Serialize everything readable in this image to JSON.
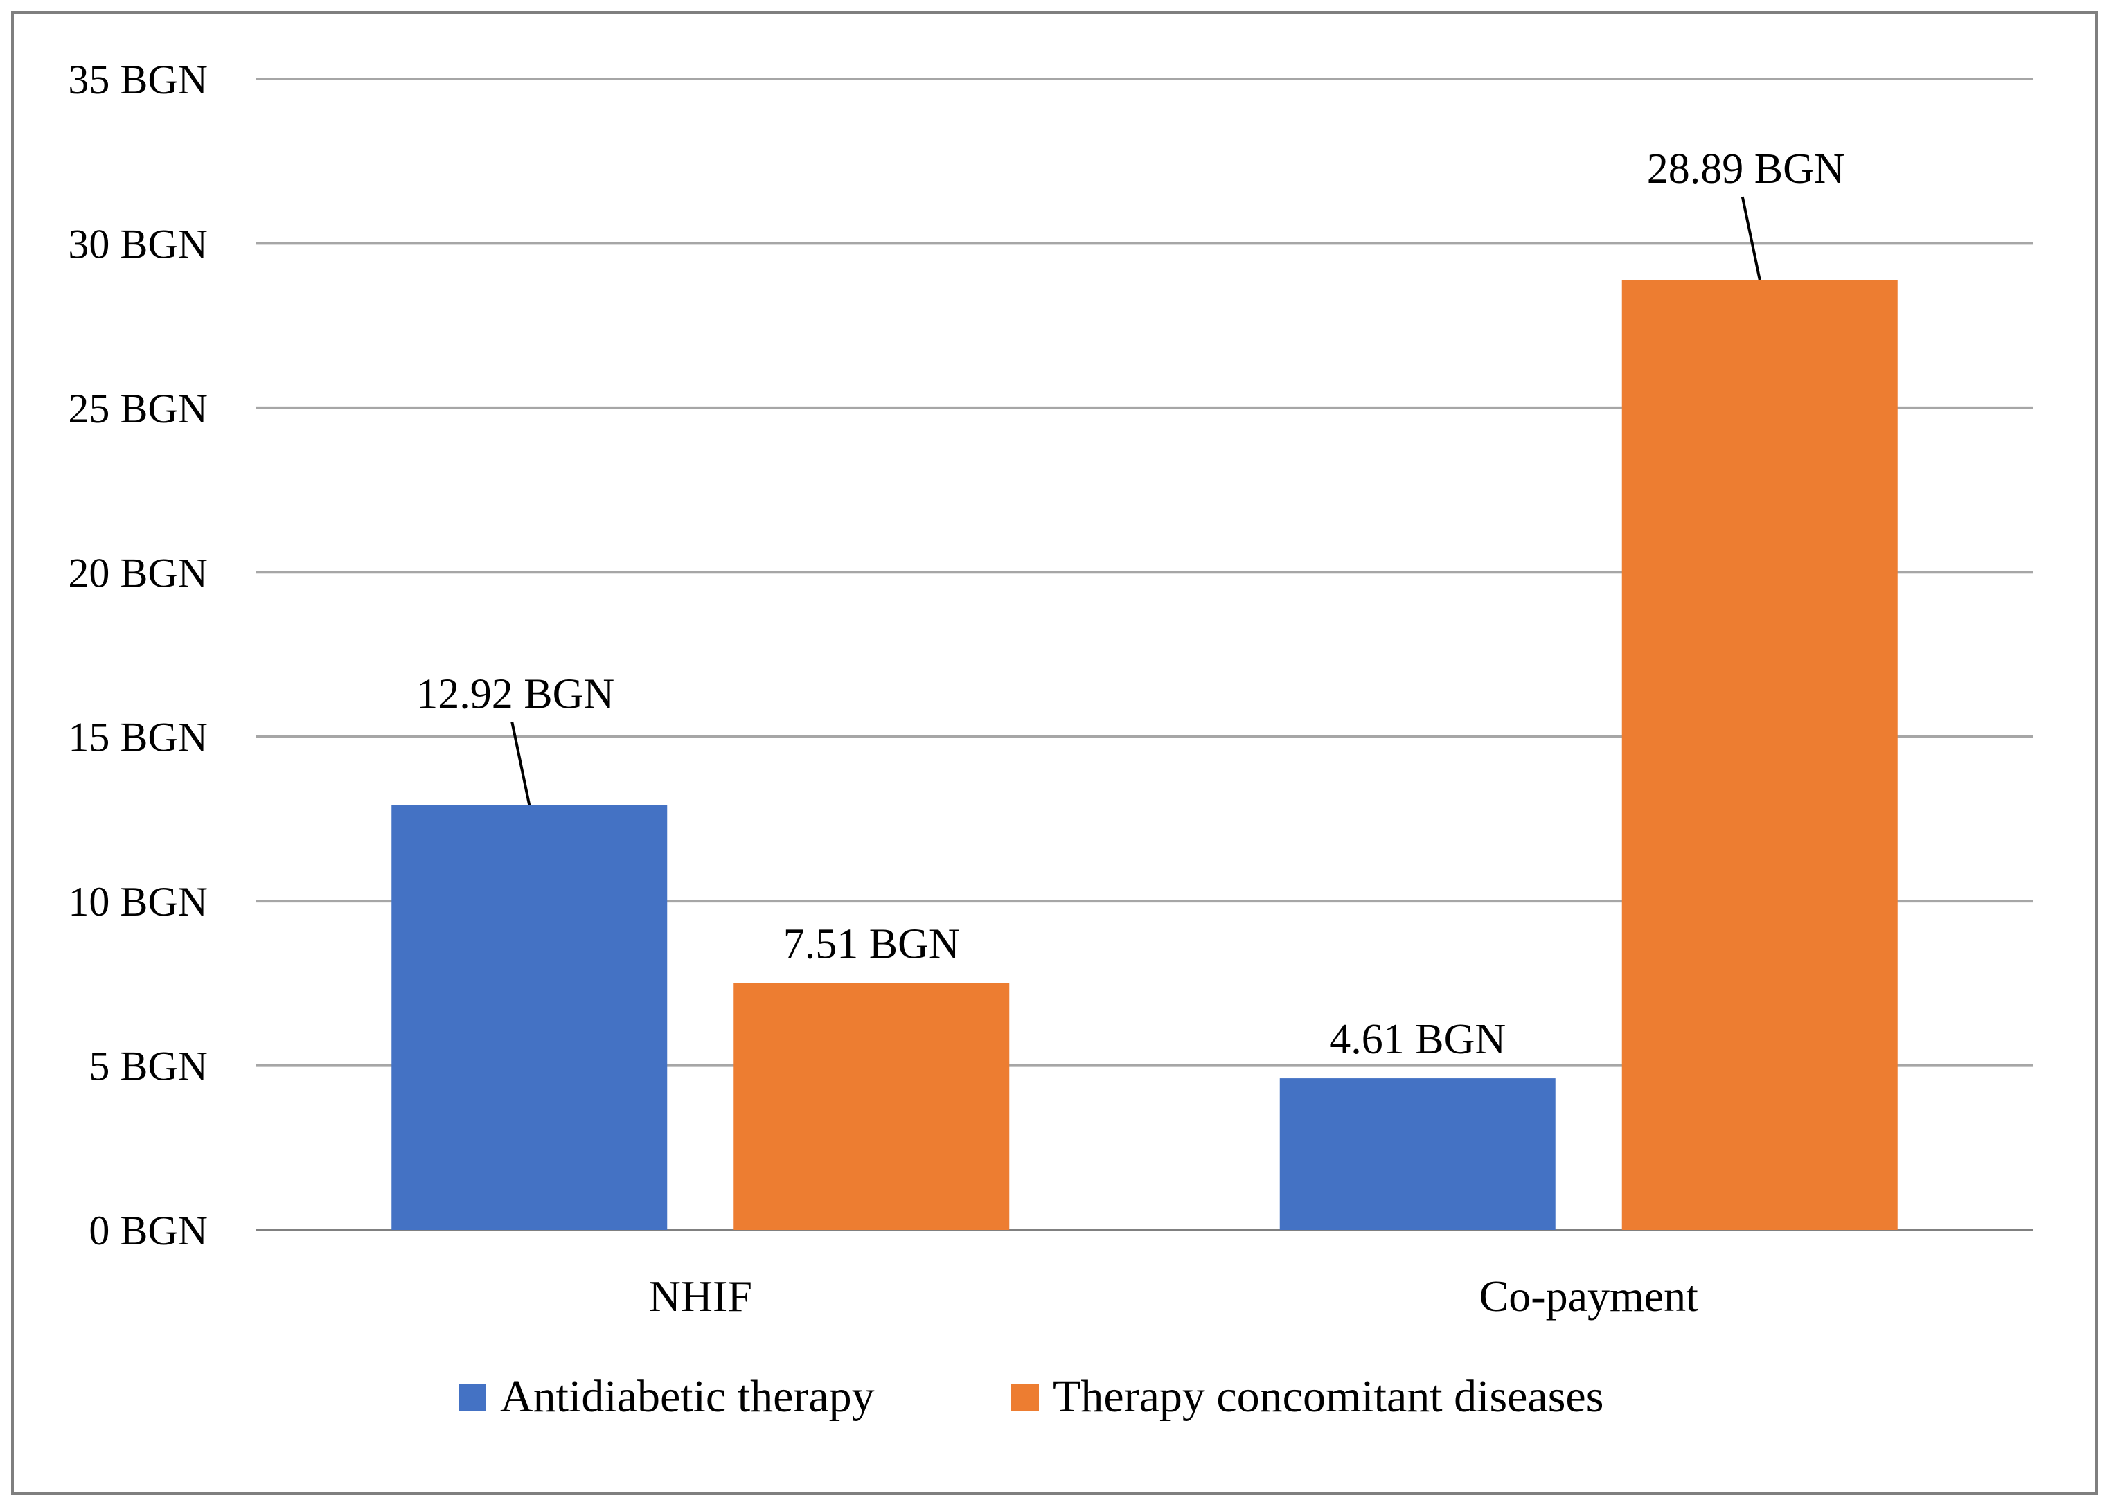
{
  "chart_data": {
    "type": "bar",
    "title": "",
    "xlabel": "",
    "ylabel": "",
    "categories": [
      "NHIF",
      "Co-payment"
    ],
    "series": [
      {
        "name": "Antidiabetic therapy",
        "color": "#4472c4",
        "values": [
          12.92,
          4.61
        ],
        "data_labels": [
          "12.92 BGN",
          "4.61 BGN"
        ]
      },
      {
        "name": "Therapy concomitant diseases",
        "color": "#ed7d31",
        "values": [
          7.51,
          28.89
        ],
        "data_labels": [
          "7.51 BGN",
          "28.89 BGN"
        ]
      }
    ],
    "ylim": [
      0,
      35
    ],
    "y_ticks": [
      0,
      5,
      10,
      15,
      20,
      25,
      30,
      35
    ],
    "y_tick_labels": [
      "0 BGN",
      "5 BGN",
      "10 BGN",
      "15 BGN",
      "20 BGN",
      "25 BGN",
      "30 BGN",
      "35 BGN"
    ],
    "grid": true,
    "legend_position": "bottom"
  }
}
